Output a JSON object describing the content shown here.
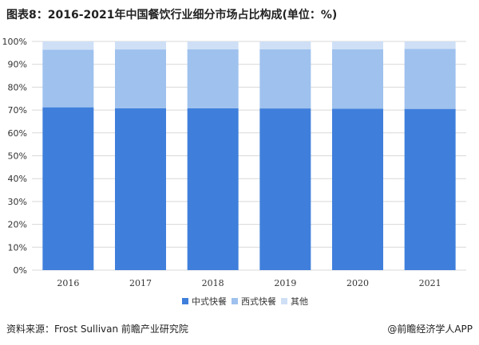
{
  "title": "图表8：2016-2021年中国餐饮行业细分市场占比构成(单位：%)",
  "source": "资料来源：Frost Sullivan 前瞻产业研究院",
  "brand": "@前瞻经济学人APP",
  "watermark": "前瞻产业研究院",
  "colors": {
    "chinese_fast_food": "#3f7fdb",
    "western_fast_food": "#9ec1ee",
    "other": "#cfe0f6",
    "grid": "#d8d8d8",
    "axis_text": "#333333"
  },
  "chart_data": {
    "type": "bar",
    "stacked": true,
    "categories": [
      "2016",
      "2017",
      "2018",
      "2019",
      "2020",
      "2021"
    ],
    "series": [
      {
        "name": "中式快餐",
        "values": [
          71.2,
          70.8,
          70.8,
          70.7,
          70.6,
          70.5
        ]
      },
      {
        "name": "西式快餐",
        "values": [
          25.2,
          25.7,
          25.8,
          25.9,
          26.0,
          26.2
        ]
      },
      {
        "name": "其他",
        "values": [
          3.6,
          3.5,
          3.4,
          3.4,
          3.4,
          3.3
        ]
      }
    ],
    "ylim": [
      0,
      100
    ],
    "yticks": [
      "0%",
      "10%",
      "20%",
      "30%",
      "40%",
      "50%",
      "60%",
      "70%",
      "80%",
      "90%",
      "100%"
    ],
    "grid": true,
    "legend_position": "bottom"
  }
}
